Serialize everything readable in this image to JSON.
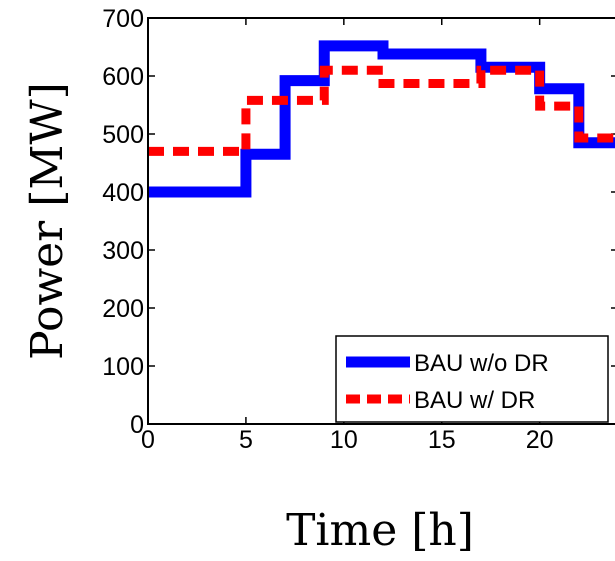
{
  "chart_data": {
    "type": "line",
    "step": true,
    "xlabel": "Time [h]",
    "ylabel": "Power [MW]",
    "xlim": [
      0,
      24
    ],
    "ylim": [
      0,
      700
    ],
    "xticks": [
      "0",
      "5",
      "10",
      "15",
      "20"
    ],
    "xtick_values": [
      0,
      5,
      10,
      15,
      20
    ],
    "yticks": [
      "0",
      "100",
      "200",
      "300",
      "400",
      "500",
      "600",
      "700"
    ],
    "ytick_values": [
      0,
      100,
      200,
      300,
      400,
      500,
      600,
      700
    ],
    "legend_position": "bottom-right",
    "series": [
      {
        "name": "BAU w/o DR",
        "color": "#0000ff",
        "style": "solid",
        "x": [
          0,
          5,
          7,
          9,
          12,
          17,
          20,
          22,
          24
        ],
        "y": [
          400,
          465,
          592,
          652,
          638,
          615,
          578,
          485,
          485
        ]
      },
      {
        "name": "BAU w/ DR",
        "color": "#ff0000",
        "style": "dashed",
        "x": [
          0,
          5,
          9,
          12,
          17,
          20,
          22,
          24
        ],
        "y": [
          470,
          558,
          610,
          587,
          610,
          548,
          493,
          493
        ]
      }
    ]
  }
}
